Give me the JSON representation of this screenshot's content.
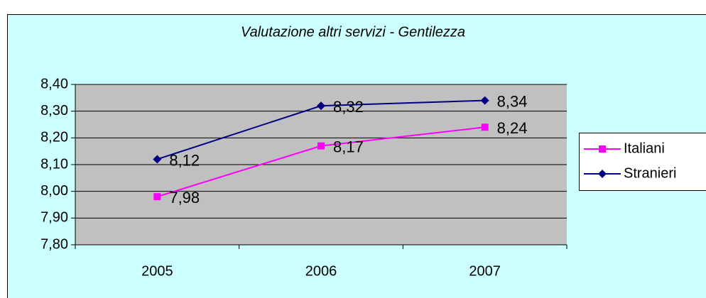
{
  "chart_data": {
    "type": "line",
    "title": "Valutazione altri servizi - Gentilezza",
    "categories": [
      "2005",
      "2006",
      "2007"
    ],
    "series": [
      {
        "name": "Italiani",
        "color": "#ff00ff",
        "marker": "square",
        "values": [
          7.98,
          8.17,
          8.24
        ],
        "value_labels": [
          "7,98",
          "8,17",
          "8,24"
        ]
      },
      {
        "name": "Stranieri",
        "color": "#000080",
        "marker": "diamond",
        "values": [
          8.12,
          8.32,
          8.34
        ],
        "value_labels": [
          "8,12",
          "8,32",
          "8,34"
        ]
      }
    ],
    "ylim": [
      7.8,
      8.4
    ],
    "yticks": [
      {
        "value": 7.8,
        "label": "7,80"
      },
      {
        "value": 7.9,
        "label": "7,90"
      },
      {
        "value": 8.0,
        "label": "8,00"
      },
      {
        "value": 8.1,
        "label": "8,10"
      },
      {
        "value": 8.2,
        "label": "8,20"
      },
      {
        "value": 8.3,
        "label": "8,30"
      },
      {
        "value": 8.4,
        "label": "8,40"
      }
    ],
    "grid": true,
    "legend": "right"
  }
}
